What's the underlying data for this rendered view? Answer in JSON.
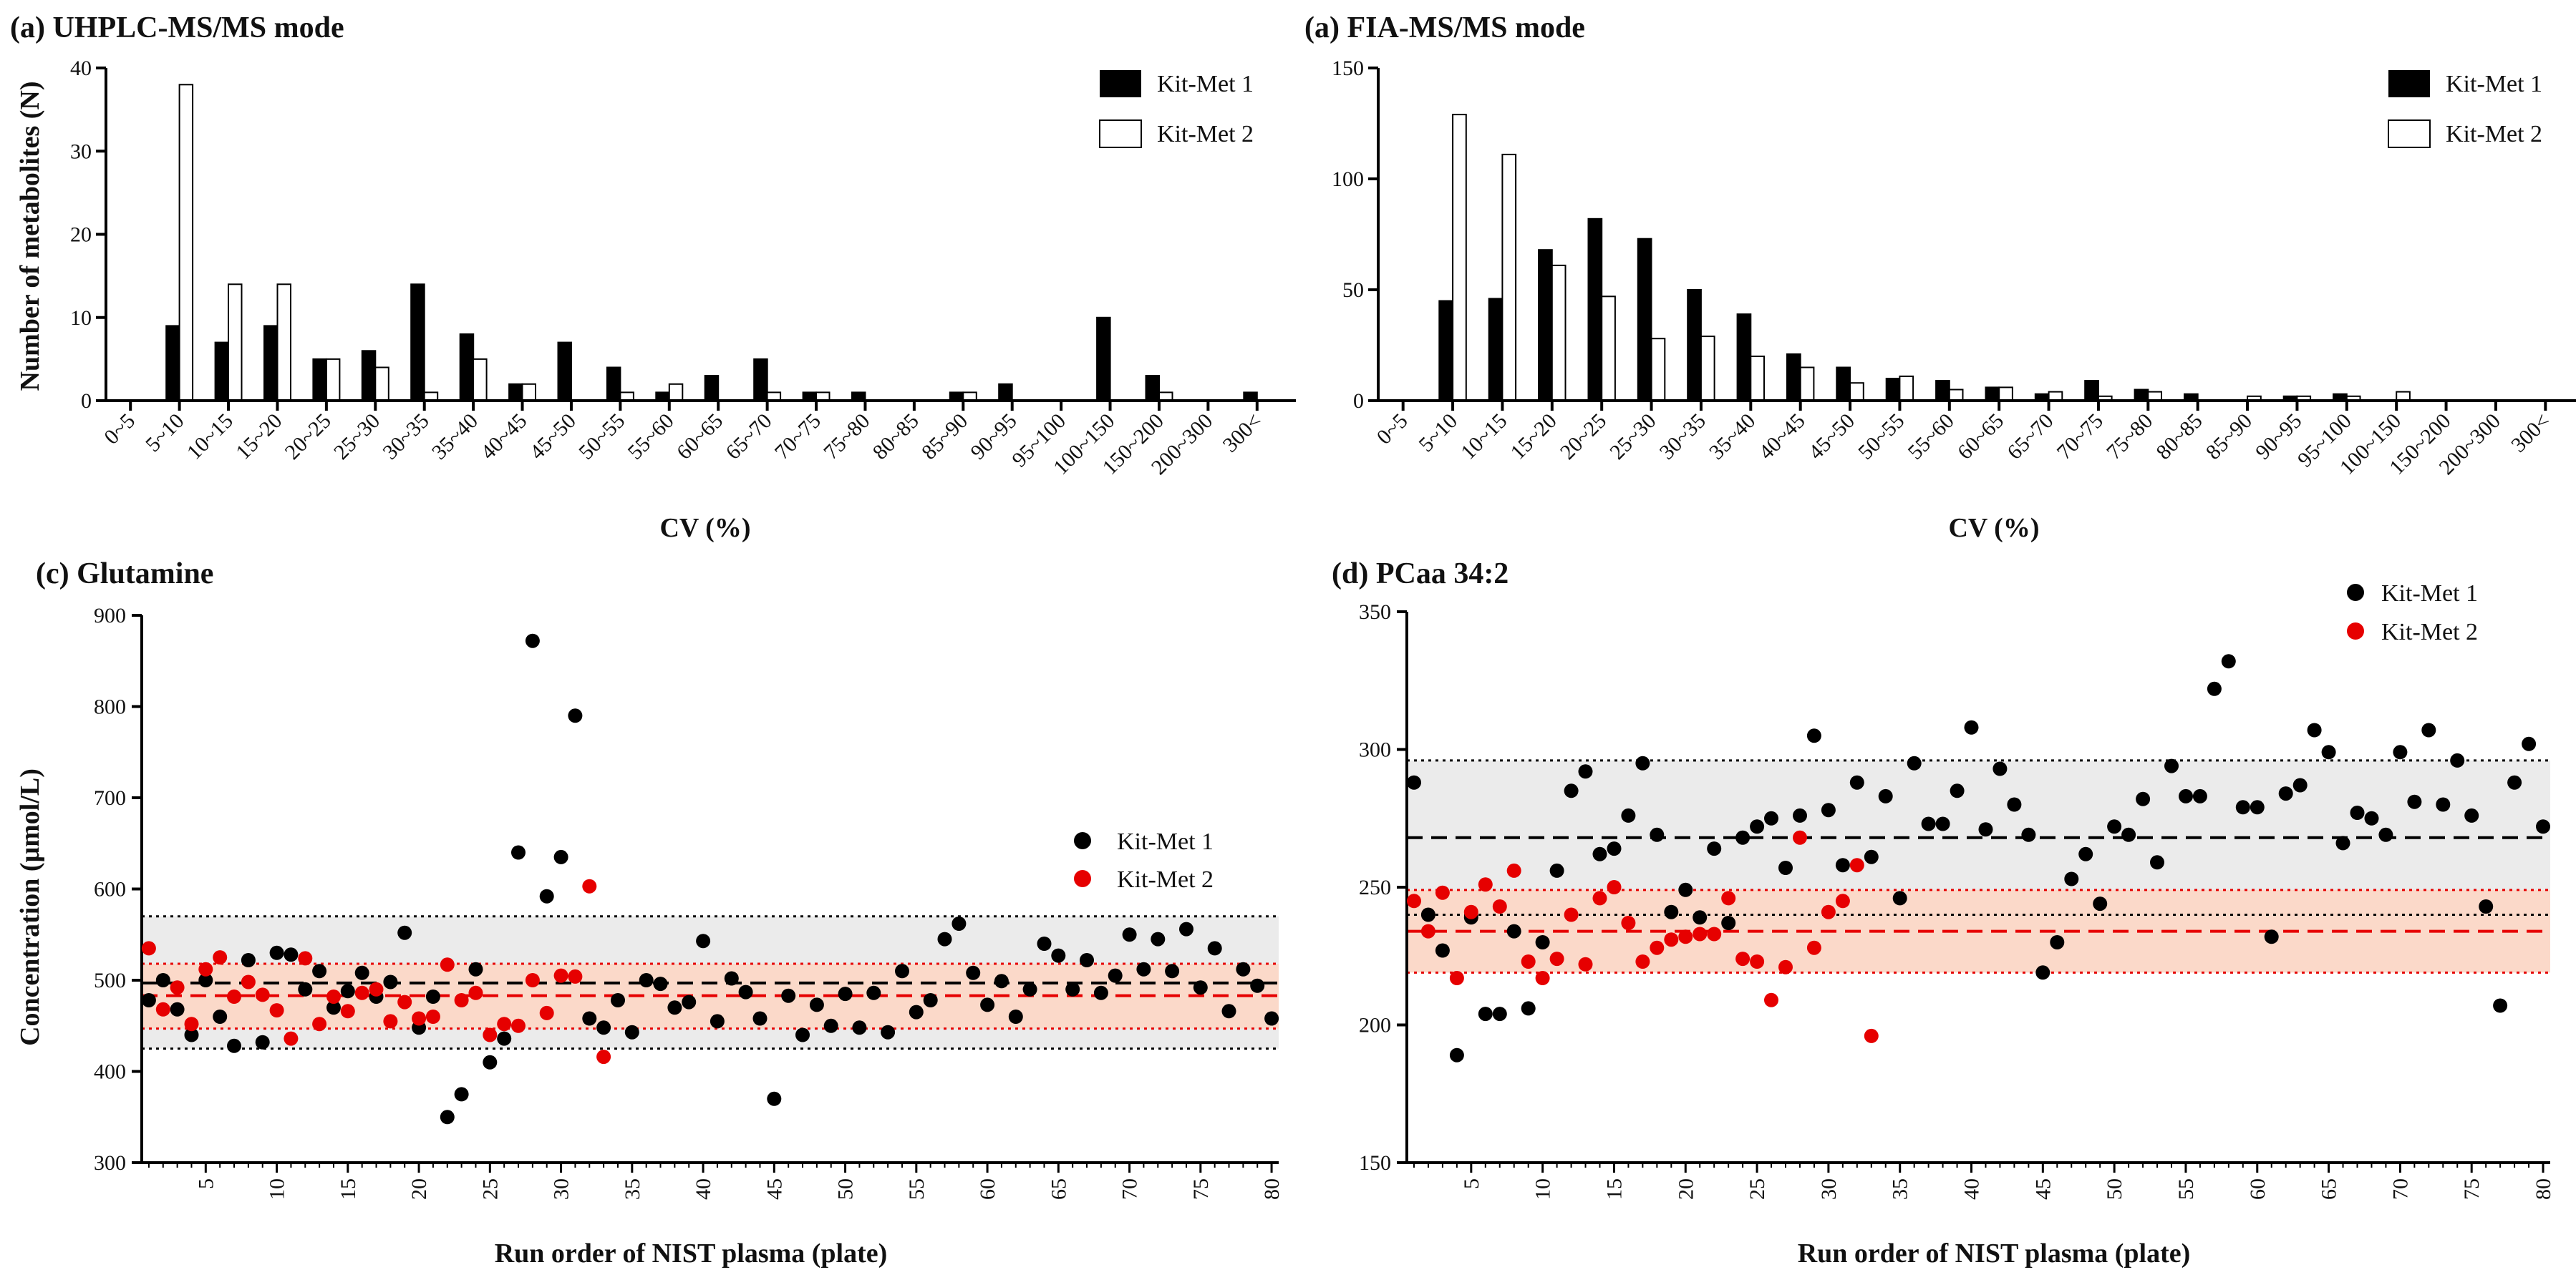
{
  "chart_data": [
    {
      "id": "a",
      "type": "bar",
      "title": "(a) UHPLC-MS/MS mode",
      "xlabel": "CV (%)",
      "ylabel": "Number of metabolites (N)",
      "ylim": [
        0,
        40
      ],
      "yticks": [
        0,
        10,
        20,
        30,
        40
      ],
      "legend_position": "top-right",
      "categories": [
        "0~5",
        "5~10",
        "10~15",
        "15~20",
        "20~25",
        "25~30",
        "30~35",
        "35~40",
        "40~45",
        "45~50",
        "50~55",
        "55~60",
        "60~65",
        "65~70",
        "70~75",
        "75~80",
        "80~85",
        "85~90",
        "90~95",
        "95~100",
        "100~150",
        "150~200",
        "200~300",
        "300<"
      ],
      "series": [
        {
          "name": "Kit-Met 1",
          "color": "#000000",
          "values": [
            0,
            9,
            7,
            9,
            5,
            6,
            14,
            8,
            2,
            7,
            4,
            1,
            3,
            5,
            1,
            1,
            0,
            1,
            2,
            0,
            10,
            3,
            0,
            1
          ]
        },
        {
          "name": "Kit-Met 2",
          "color": "#ffffff",
          "values": [
            0,
            38,
            14,
            14,
            5,
            4,
            1,
            5,
            2,
            0,
            1,
            2,
            0,
            1,
            1,
            0,
            0,
            1,
            0,
            0,
            0,
            1,
            0,
            0
          ]
        }
      ]
    },
    {
      "id": "b",
      "type": "bar",
      "title": "(a) FIA-MS/MS mode",
      "xlabel": "CV (%)",
      "ylabel": "",
      "ylim": [
        0,
        150
      ],
      "yticks": [
        0,
        50,
        100,
        150
      ],
      "legend_position": "top-right",
      "categories": [
        "0~5",
        "5~10",
        "10~15",
        "15~20",
        "20~25",
        "25~30",
        "30~35",
        "35~40",
        "40~45",
        "45~50",
        "50~55",
        "55~60",
        "60~65",
        "65~70",
        "70~75",
        "75~80",
        "80~85",
        "85~90",
        "90~95",
        "95~100",
        "100~150",
        "150~200",
        "200~300",
        "300<"
      ],
      "series": [
        {
          "name": "Kit-Met 1",
          "color": "#000000",
          "values": [
            0,
            45,
            46,
            68,
            82,
            73,
            50,
            39,
            21,
            15,
            10,
            9,
            6,
            3,
            9,
            5,
            3,
            0,
            2,
            3,
            0,
            0,
            0,
            0
          ]
        },
        {
          "name": "Kit-Met 2",
          "color": "#ffffff",
          "values": [
            0,
            129,
            111,
            61,
            47,
            28,
            29,
            20,
            15,
            8,
            11,
            5,
            6,
            4,
            2,
            4,
            0,
            2,
            2,
            2,
            4,
            0,
            0,
            0
          ]
        }
      ]
    },
    {
      "id": "c",
      "type": "scatter",
      "title": "(c) Glutamine",
      "xlabel": "Run order of NIST plasma (plate)",
      "ylabel": "Concentration (μmol/L)",
      "xlim": [
        0.5,
        80.5
      ],
      "ylim": [
        300,
        900
      ],
      "xticks": [
        5,
        10,
        15,
        20,
        25,
        30,
        35,
        40,
        45,
        50,
        55,
        60,
        65,
        70,
        75,
        80
      ],
      "yticks": [
        300,
        400,
        500,
        600,
        700,
        800,
        900
      ],
      "legend_position": "center-right",
      "bands": [
        {
          "name": "Kit-Met 1 range",
          "low": 425,
          "high": 570,
          "mean": 497,
          "fill": "#ebebeb",
          "line": "#000000"
        },
        {
          "name": "Kit-Met 2 range",
          "low": 447,
          "high": 518,
          "mean": 483,
          "fill": "#fbd9c9",
          "line": "#e60000"
        }
      ],
      "series": [
        {
          "name": "Kit-Met 1",
          "color": "#000000",
          "x": [
            1,
            2,
            3,
            4,
            5,
            6,
            7,
            8,
            9,
            10,
            11,
            12,
            13,
            14,
            15,
            16,
            17,
            18,
            19,
            20,
            21,
            22,
            23,
            24,
            25,
            26,
            27,
            28,
            29,
            30,
            31,
            32,
            33,
            34,
            35,
            36,
            37,
            38,
            39,
            40,
            41,
            42,
            43,
            44,
            45,
            46,
            47,
            48,
            49,
            50,
            51,
            52,
            53,
            54,
            55,
            56,
            57,
            58,
            59,
            60,
            61,
            62,
            63,
            64,
            65,
            66,
            67,
            68,
            69,
            70,
            71,
            72,
            73,
            74,
            75,
            76,
            77,
            78,
            79,
            80
          ],
          "y": [
            478,
            500,
            468,
            440,
            500,
            460,
            428,
            522,
            432,
            530,
            528,
            490,
            510,
            470,
            488,
            508,
            482,
            498,
            552,
            448,
            482,
            350,
            375,
            512,
            410,
            436,
            640,
            872,
            592,
            635,
            790,
            458,
            448,
            478,
            443,
            500,
            496,
            470,
            476,
            543,
            455,
            502,
            487,
            458,
            370,
            483,
            440,
            473,
            450,
            485,
            448,
            486,
            443,
            510,
            465,
            478,
            545,
            562,
            508,
            473,
            499,
            460,
            490,
            540,
            527,
            490,
            522,
            486,
            505,
            550,
            512,
            545,
            510,
            556,
            492,
            535,
            466,
            512,
            494,
            458
          ]
        },
        {
          "name": "Kit-Met 2",
          "color": "#e60000",
          "x": [
            1,
            2,
            3,
            4,
            5,
            6,
            7,
            8,
            9,
            10,
            11,
            12,
            13,
            14,
            15,
            16,
            17,
            18,
            19,
            20,
            21,
            22,
            23,
            24,
            25,
            26,
            27,
            28,
            29,
            30,
            31,
            32,
            33
          ],
          "y": [
            535,
            468,
            492,
            452,
            512,
            525,
            482,
            498,
            484,
            467,
            436,
            524,
            452,
            482,
            466,
            486,
            490,
            455,
            476,
            458,
            460,
            517,
            478,
            486,
            440,
            452,
            450,
            500,
            464,
            505,
            504,
            603,
            416
          ]
        }
      ]
    },
    {
      "id": "d",
      "type": "scatter",
      "title": "(d) PCaa 34:2",
      "xlabel": "Run order of NIST plasma (plate)",
      "ylabel": "",
      "xlim": [
        0.5,
        80.5
      ],
      "ylim": [
        150,
        350
      ],
      "xticks": [
        5,
        10,
        15,
        20,
        25,
        30,
        35,
        40,
        45,
        50,
        55,
        60,
        65,
        70,
        75,
        80
      ],
      "yticks": [
        150,
        200,
        250,
        300,
        350
      ],
      "legend_position": "top-right",
      "bands": [
        {
          "name": "Kit-Met 1 range",
          "low": 240,
          "high": 296,
          "mean": 268,
          "fill": "#ebebeb",
          "line": "#000000"
        },
        {
          "name": "Kit-Met 2 range",
          "low": 219,
          "high": 249,
          "mean": 234,
          "fill": "#fbd9c9",
          "line": "#e60000"
        }
      ],
      "series": [
        {
          "name": "Kit-Met 1",
          "color": "#000000",
          "x": [
            1,
            2,
            3,
            4,
            5,
            6,
            7,
            8,
            9,
            10,
            11,
            12,
            13,
            14,
            15,
            16,
            17,
            18,
            19,
            20,
            21,
            22,
            23,
            24,
            25,
            26,
            27,
            28,
            29,
            30,
            31,
            32,
            33,
            34,
            35,
            36,
            37,
            38,
            39,
            40,
            41,
            42,
            43,
            44,
            45,
            46,
            47,
            48,
            49,
            50,
            51,
            52,
            53,
            54,
            55,
            56,
            57,
            58,
            59,
            60,
            61,
            62,
            63,
            64,
            65,
            66,
            67,
            68,
            69,
            70,
            71,
            72,
            73,
            74,
            75,
            76,
            77,
            78,
            79,
            80
          ],
          "y": [
            288,
            240,
            227,
            189,
            239,
            204,
            204,
            234,
            206,
            230,
            256,
            285,
            292,
            262,
            264,
            276,
            295,
            269,
            241,
            249,
            239,
            264,
            237,
            268,
            272,
            275,
            257,
            276,
            305,
            278,
            258,
            288,
            261,
            283,
            246,
            295,
            273,
            273,
            285,
            308,
            271,
            293,
            280,
            269,
            219,
            230,
            253,
            262,
            244,
            272,
            269,
            282,
            259,
            294,
            283,
            283,
            322,
            332,
            279,
            279,
            232,
            284,
            287,
            307,
            299,
            266,
            277,
            275,
            269,
            299,
            281,
            307,
            280,
            296,
            276,
            243,
            207,
            288,
            302,
            272
          ]
        },
        {
          "name": "Kit-Met 2",
          "color": "#e60000",
          "x": [
            1,
            2,
            3,
            4,
            5,
            6,
            7,
            8,
            9,
            10,
            11,
            12,
            13,
            14,
            15,
            16,
            17,
            18,
            19,
            20,
            21,
            22,
            23,
            24,
            25,
            26,
            27,
            28,
            29,
            30,
            31,
            32,
            33
          ],
          "y": [
            245,
            234,
            248,
            217,
            241,
            251,
            243,
            256,
            223,
            217,
            224,
            240,
            222,
            246,
            250,
            237,
            223,
            228,
            231,
            232,
            233,
            233,
            246,
            224,
            223,
            209,
            221,
            268,
            228,
            241,
            245,
            258,
            196
          ]
        }
      ]
    }
  ]
}
